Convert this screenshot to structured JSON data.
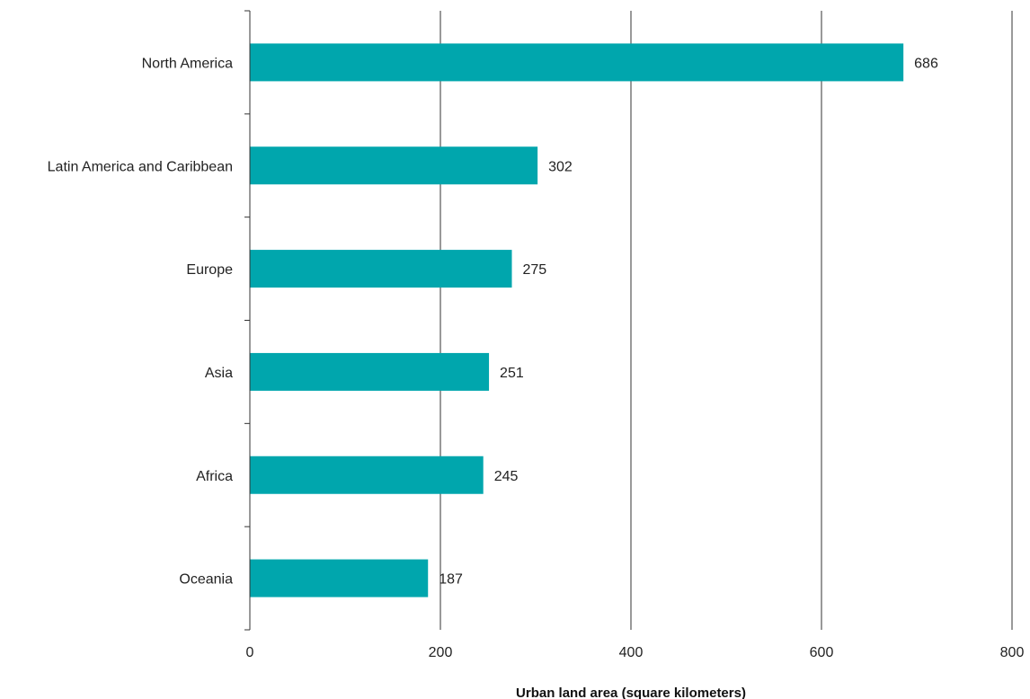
{
  "chart_data": {
    "type": "bar",
    "orientation": "horizontal",
    "categories": [
      "North America",
      "Latin America and Caribbean",
      "Europe",
      "Asia",
      "Africa",
      "Oceania"
    ],
    "values": [
      686,
      302,
      275,
      251,
      245,
      187
    ],
    "xlabel": "Urban land area (square kilometers)",
    "ylabel": "",
    "xlim": [
      0,
      800
    ],
    "xticks": [
      "0",
      "200",
      "400",
      "600",
      "800"
    ],
    "grid": "vertical",
    "bar_color": "#00a6ad"
  }
}
